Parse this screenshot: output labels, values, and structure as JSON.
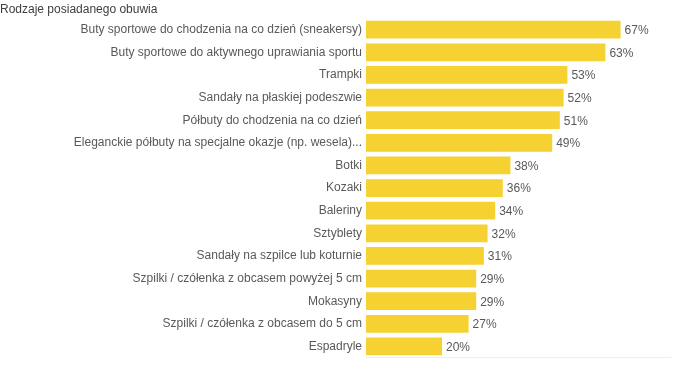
{
  "chart_data": {
    "type": "bar",
    "title": "Rodzaje posiadanego obuwia",
    "orientation": "horizontal",
    "categories": [
      "Buty sportowe do chodzenia na co dzień (sneakersy)",
      "Buty sportowe do aktywnego uprawiania sportu",
      "Trampki",
      "Sandały na płaskiej podeszwie",
      "Półbuty do chodzenia na co dzień",
      "Eleganckie półbuty na specjalne okazje (np. wesela)...",
      "Botki",
      "Kozaki",
      "Baleriny",
      "Sztyblety",
      "Sandały na szpilce lub koturnie",
      "Szpilki / czółenka z obcasem powyżej 5 cm",
      "Mokasyny",
      "Szpilki / czółenka z obcasem do 5 cm",
      "Espadryle"
    ],
    "values": [
      67,
      63,
      53,
      52,
      51,
      49,
      38,
      36,
      34,
      32,
      31,
      29,
      29,
      27,
      20
    ],
    "value_labels": [
      "67%",
      "63%",
      "53%",
      "52%",
      "51%",
      "49%",
      "38%",
      "36%",
      "34%",
      "32%",
      "31%",
      "29%",
      "29%",
      "27%",
      "20%"
    ],
    "color": "#f5d131",
    "xlim": [
      0,
      80
    ],
    "grid": false,
    "data_labels": true,
    "tick_labels": "y"
  }
}
